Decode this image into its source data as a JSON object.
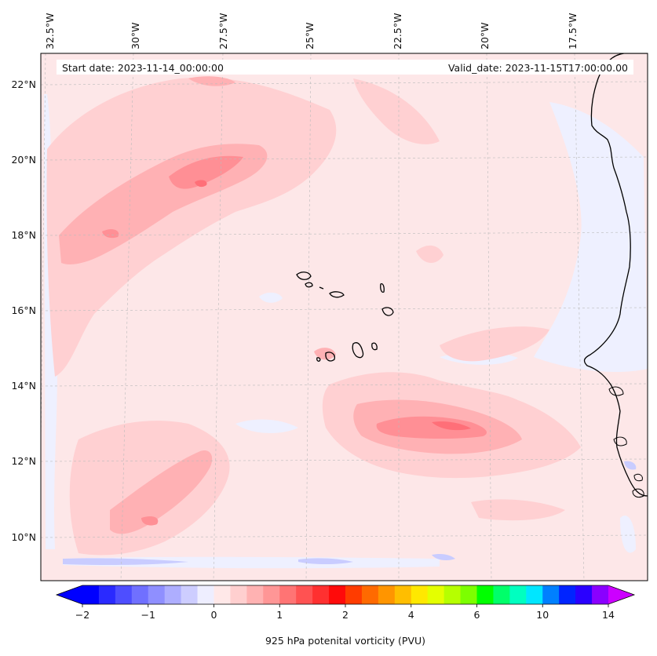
{
  "header": {
    "start_date": "Start date: 2023-11-14_00:00:00",
    "valid_date": "Valid_date: 2023-11-15T17:00:00.00"
  },
  "map": {
    "longitude_labels": [
      "32.5°W",
      "30°W",
      "27.5°W",
      "25°W",
      "22.5°W",
      "20°W",
      "17.5°W"
    ],
    "latitude_labels": [
      "22°N",
      "20°N",
      "18°N",
      "16°N",
      "14°N",
      "12°N",
      "10°N"
    ],
    "variable": "925 hPa potential vorticity",
    "features": [
      "Cabo Verde islands",
      "West African coastline"
    ],
    "colors": {
      "background_field": "#fde7e8",
      "light_pink": "#ffd0d2",
      "mid_pink": "#ffb1b4",
      "dark_pink": "#ff8f95",
      "deep_pink": "#ff6f78",
      "pale_blue": "#eef0ff",
      "light_blue": "#c9ccff",
      "coast": "#000000",
      "grid": "#bbbbbb"
    }
  },
  "colorbar": {
    "label": "925 hPa potenital vorticity (PVU)",
    "tick_labels": [
      "−2",
      "−1",
      "0",
      "1",
      "2",
      "4",
      "6",
      "10",
      "14"
    ],
    "colors": [
      "#0000ff",
      "#2a2aff",
      "#4e4eff",
      "#7070ff",
      "#8f8fff",
      "#aeaeff",
      "#cdcdff",
      "#eeeeff",
      "#ffe8e8",
      "#ffcfcf",
      "#ffb2b2",
      "#ff9696",
      "#ff7474",
      "#ff5252",
      "#ff3030",
      "#ff0a0a",
      "#ff3c00",
      "#ff6a00",
      "#ff9500",
      "#ffbe00",
      "#ffe800",
      "#e4ff00",
      "#b6ff00",
      "#7cff00",
      "#00ff00",
      "#00ff6a",
      "#00ffc0",
      "#00e6ff",
      "#0080ff",
      "#0024ff",
      "#2a00ff",
      "#8a00ff"
    ],
    "extend_low": "#0000ff",
    "extend_high": "#cc00ff"
  }
}
